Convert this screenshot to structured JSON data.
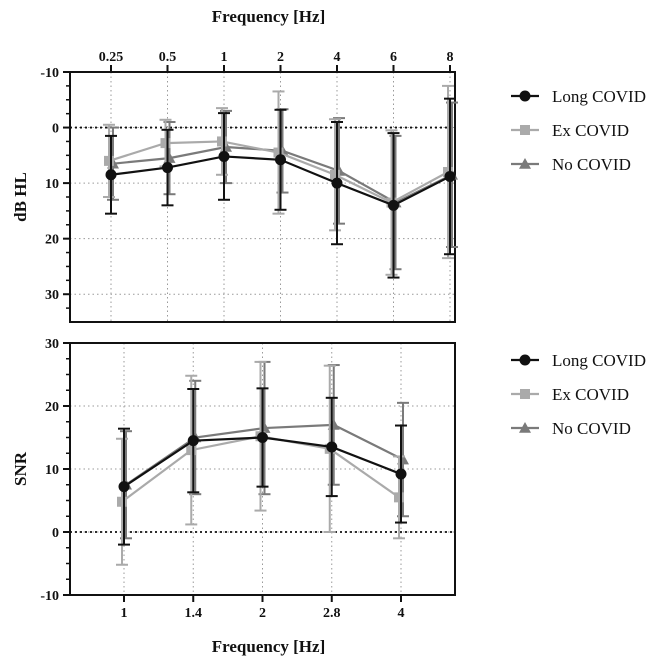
{
  "chart_data": [
    {
      "type": "line",
      "title": "",
      "xlabel": "Frequency [Hz]",
      "ylabel": "dB HL",
      "x_axis_position": "top",
      "y_inverted": true,
      "ylim": [
        -10,
        35
      ],
      "yticks": [
        "-10",
        "0",
        "10",
        "20",
        "30"
      ],
      "categories": [
        "0.25",
        "0.5",
        "1",
        "2",
        "4",
        "6",
        "8"
      ],
      "reference_line_y": 0,
      "grid": true,
      "legend": "right",
      "series": [
        {
          "name": "Long COVID",
          "marker": "circle",
          "color": "#111111",
          "values": [
            8.5,
            7.2,
            5.2,
            5.8,
            10.0,
            14.0,
            8.8
          ],
          "error": [
            7.0,
            6.8,
            7.8,
            9.0,
            11.0,
            13.0,
            14.0
          ]
        },
        {
          "name": "Ex COVID",
          "marker": "square",
          "color": "#aaaaaa",
          "values": [
            6.0,
            2.8,
            2.5,
            4.5,
            8.5,
            13.5,
            8.0
          ],
          "error": [
            6.5,
            4.2,
            6.0,
            11.0,
            10.0,
            13.0,
            15.5
          ]
        },
        {
          "name": "No COVID",
          "marker": "triangle",
          "color": "#7a7a7a",
          "values": [
            6.5,
            5.5,
            3.5,
            4.2,
            7.8,
            13.5,
            8.5
          ],
          "error": [
            6.5,
            6.5,
            6.5,
            7.5,
            9.5,
            12.0,
            13.0
          ]
        }
      ]
    },
    {
      "type": "line",
      "title": "",
      "xlabel": "Frequency [Hz]",
      "ylabel": "SNR",
      "x_axis_position": "bottom",
      "y_inverted": false,
      "ylim": [
        -10,
        30
      ],
      "yticks": [
        "-10",
        "0",
        "10",
        "20",
        "30"
      ],
      "categories": [
        "1",
        "1.4",
        "2",
        "2.8",
        "4"
      ],
      "reference_line_y": 0,
      "grid": true,
      "legend": "right",
      "series": [
        {
          "name": "Long COVID",
          "marker": "circle",
          "color": "#111111",
          "values": [
            7.2,
            14.5,
            15.0,
            13.5,
            9.2
          ],
          "error": [
            9.2,
            8.2,
            7.8,
            7.8,
            7.7
          ]
        },
        {
          "name": "Ex COVID",
          "marker": "square",
          "color": "#aaaaaa",
          "values": [
            4.8,
            13.0,
            15.2,
            13.2,
            5.5
          ],
          "error": [
            10.0,
            11.8,
            11.8,
            13.2,
            6.5
          ]
        },
        {
          "name": "No COVID",
          "marker": "triangle",
          "color": "#7a7a7a",
          "values": [
            7.5,
            15.0,
            16.5,
            17.0,
            11.5
          ],
          "error": [
            8.5,
            9.0,
            10.5,
            9.5,
            9.0
          ]
        }
      ]
    }
  ]
}
